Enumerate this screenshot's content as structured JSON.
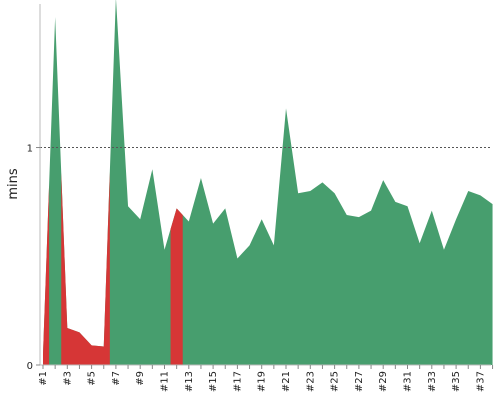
{
  "chart_data": {
    "type": "area",
    "ylabel": "mins",
    "xlabel": "",
    "ylim": [
      0,
      1.66
    ],
    "yticks": [
      0,
      1
    ],
    "reference_line": 1,
    "categories": [
      "#1",
      "#2",
      "#3",
      "#4",
      "#5",
      "#6",
      "#7",
      "#8",
      "#9",
      "#10",
      "#11",
      "#12",
      "#13",
      "#14",
      "#15",
      "#16",
      "#17",
      "#18",
      "#19",
      "#20",
      "#21",
      "#22",
      "#23",
      "#24",
      "#25",
      "#26",
      "#27",
      "#28",
      "#29",
      "#30",
      "#31",
      "#32",
      "#33",
      "#34",
      "#35",
      "#36",
      "#37",
      "#38"
    ],
    "x_tick_labels": [
      "#1",
      "#3",
      "#5",
      "#7",
      "#9",
      "#11",
      "#13",
      "#15",
      "#17",
      "#19",
      "#21",
      "#23",
      "#25",
      "#27",
      "#29",
      "#31",
      "#33",
      "#35",
      "#37"
    ],
    "values": [
      0.05,
      1.6,
      0.17,
      0.15,
      0.09,
      0.085,
      1.69,
      0.73,
      0.67,
      0.9,
      0.53,
      0.72,
      0.66,
      0.86,
      0.65,
      0.72,
      0.49,
      0.55,
      0.67,
      0.55,
      1.18,
      0.79,
      0.8,
      0.84,
      0.79,
      0.69,
      0.68,
      0.71,
      0.85,
      0.75,
      0.73,
      0.56,
      0.71,
      0.53,
      0.67,
      0.8,
      0.78,
      0.74
    ],
    "colors": {
      "good": "#479e6e",
      "bad": "#d63636"
    },
    "red_segments": [
      [
        0,
        0.5
      ],
      [
        1.5,
        5.5
      ],
      [
        10.5,
        11.5
      ]
    ],
    "grid": false
  }
}
